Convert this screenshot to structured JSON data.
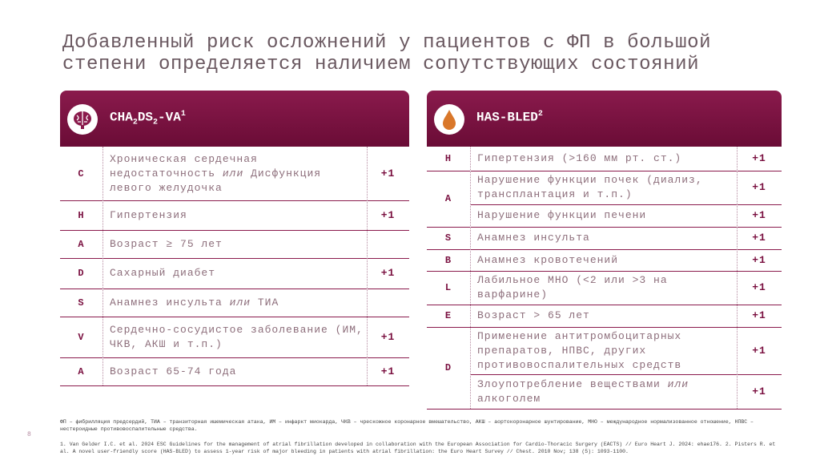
{
  "title": [
    "Добавленный риск осложнений у пациентов с ФП в большой",
    "степени определяется наличием сопутствующих состояний"
  ],
  "left": {
    "heading": [
      "CHA",
      "2",
      "DS",
      "2",
      "-VA",
      "1"
    ],
    "rows": [
      {
        "letter": "C",
        "items": [
          {
            "text": [
              "Хроническая сердечная недостаточность",
              "или",
              "Дисфункция левого желудочка"
            ],
            "score": "+1"
          }
        ]
      },
      {
        "letter": "H",
        "items": [
          {
            "text": [
              "Гипертензия"
            ],
            "score": "+1"
          }
        ]
      },
      {
        "letter": "A",
        "items": [
          {
            "text": [
              "Возраст ≥ 75 лет"
            ]
          }
        ]
      },
      {
        "letter": "D",
        "items": [
          {
            "text": [
              "Сахарный диабет"
            ],
            "score": "+1"
          }
        ]
      },
      {
        "letter": "S",
        "items": [
          {
            "text": [
              "Анамнез инсульта",
              "или",
              "ТИА"
            ]
          }
        ]
      },
      {
        "letter": "V",
        "items": [
          {
            "text": [
              "Сердечно-сосудистое заболевание (ИМ, ЧКВ, АКШ и т.п.)"
            ],
            "score": "+1"
          }
        ]
      },
      {
        "letter": "A",
        "items": [
          {
            "text": [
              "Возраст 65-74 года"
            ],
            "score": "+1"
          }
        ]
      }
    ]
  },
  "right": {
    "heading": [
      "HAS-BLED",
      "2"
    ],
    "rows": [
      {
        "letter": "H",
        "items": [
          {
            "text": [
              "Гипертензия (>160 мм рт. ст.)"
            ],
            "score": "+1"
          }
        ]
      },
      {
        "letter": "A",
        "items": [
          {
            "text": [
              "Нарушение функции почек (диализ, трансплантация и т.п.)"
            ],
            "score": "+1"
          },
          {
            "text": [
              "Нарушение функции печени"
            ],
            "score": "+1"
          }
        ]
      },
      {
        "letter": "S",
        "items": [
          {
            "text": [
              "Анамнез инсульта"
            ],
            "score": "+1"
          }
        ]
      },
      {
        "letter": "B",
        "items": [
          {
            "text": [
              "Анамнез кровотечений"
            ],
            "score": "+1"
          }
        ]
      },
      {
        "letter": "L",
        "items": [
          {
            "text": [
              "Лабильное МНО (<2 или >3 на варфарине)"
            ],
            "score": "+1"
          }
        ]
      },
      {
        "letter": "E",
        "items": [
          {
            "text": [
              "Возраст > 65 лет"
            ],
            "score": "+1"
          }
        ]
      },
      {
        "letter": "D",
        "items": [
          {
            "text": [
              "Применение антитромбоцитарных препаратов, НПВС, других противовоспалительных средств"
            ],
            "score": "+1"
          },
          {
            "text": [
              "Злоупотребление веществами",
              "или",
              "алкоголем"
            ],
            "score": "+1"
          }
        ]
      }
    ]
  },
  "footer": {
    "abbreviations": "ФП – фибрилляция предсердий, ТИА – транзиторная ишемическая атака, ИМ – инфаркт миокарда, ЧКВ – чрескожное коронарное вмешательство, АКШ – аортокоронарное шунтирование, МНО – международное нормализованное отношение, НПВС – нестероидные противовоспалительные средства.",
    "references": "1. Van Gelder I.C. et al. 2024 ESC Guidelines for the management of atrial fibrillation developed in collaboration with the European Association for Cardio-Thoracic Surgery (EACTS) // Euro Heart J. 2024: ehae176. 2. Pisters R. et al. A novel user-friendly score (HAS-BLED) to assess 1-year risk of major bleeding in patients with atrial fibrillation: the Euro Heart Survey // Chest. 2010 Nov; 138 (5): 1093-1100.",
    "page_number": "8"
  }
}
